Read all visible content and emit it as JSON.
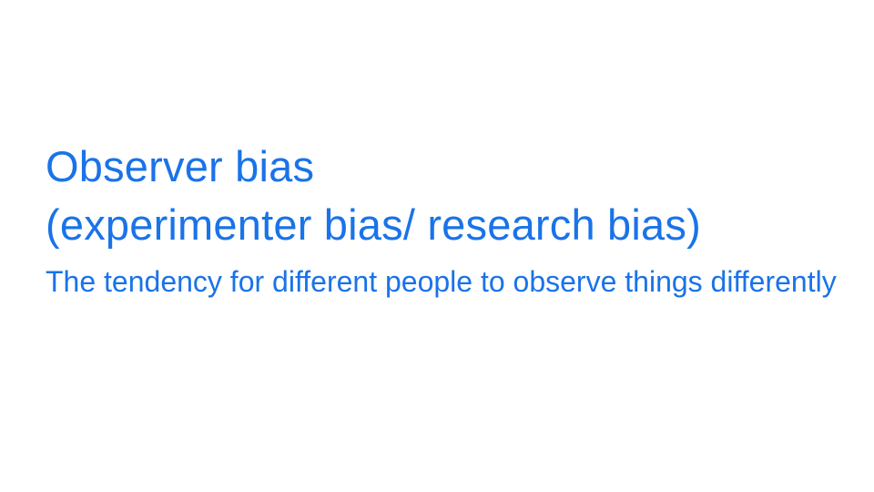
{
  "slide": {
    "title_line1": "Observer bias",
    "title_line2": "(experimenter bias/ research bias)",
    "definition": "The tendency for different people to observe things differently",
    "text_color": "#1a73e8",
    "background_color": "#ffffff"
  }
}
